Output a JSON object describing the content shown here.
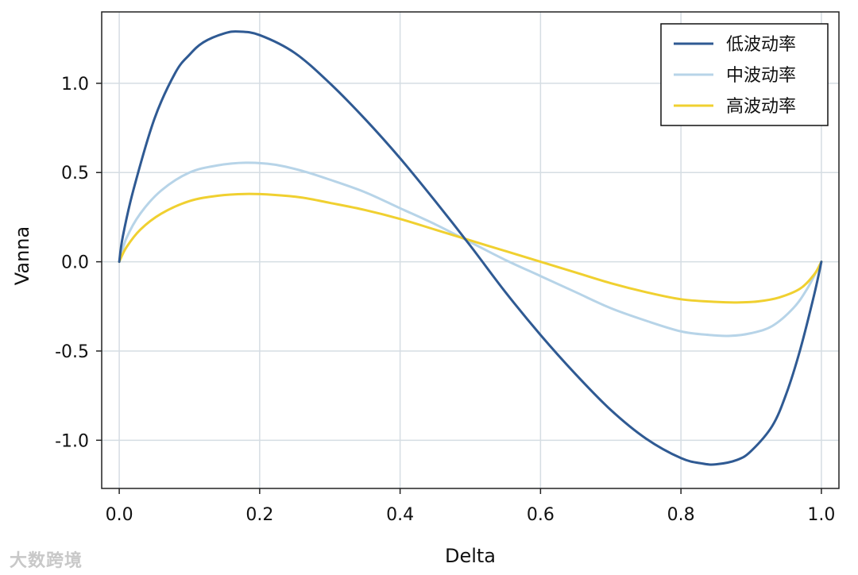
{
  "chart_data": {
    "type": "line",
    "xlabel": "Delta",
    "ylabel": "Vanna",
    "xlim": [
      -0.025,
      1.025
    ],
    "ylim": [
      -1.27,
      1.4
    ],
    "xticks": [
      0.0,
      0.2,
      0.4,
      0.6,
      0.8,
      1.0
    ],
    "xtick_labels": [
      "0.0",
      "0.2",
      "0.4",
      "0.6",
      "0.8",
      "1.0"
    ],
    "yticks": [
      -1.0,
      -0.5,
      0.0,
      0.5,
      1.0
    ],
    "ytick_labels": [
      "-1.0",
      "-0.5",
      "0.0",
      "0.5",
      "1.0"
    ],
    "grid": true,
    "legend_position": "top-right",
    "series": [
      {
        "name": "低波动率",
        "color": "#2f5a93",
        "x": [
          0.0,
          0.005,
          0.02,
          0.05,
          0.08,
          0.1,
          0.12,
          0.15,
          0.17,
          0.2,
          0.25,
          0.3,
          0.35,
          0.4,
          0.45,
          0.5,
          0.55,
          0.6,
          0.65,
          0.7,
          0.75,
          0.8,
          0.83,
          0.85,
          0.88,
          0.9,
          0.93,
          0.95,
          0.97,
          0.99,
          1.0
        ],
        "y": [
          0.0,
          0.14,
          0.4,
          0.8,
          1.06,
          1.16,
          1.23,
          1.28,
          1.29,
          1.27,
          1.17,
          1.0,
          0.8,
          0.58,
          0.34,
          0.09,
          -0.17,
          -0.41,
          -0.63,
          -0.83,
          -0.99,
          -1.1,
          -1.13,
          -1.135,
          -1.11,
          -1.06,
          -0.92,
          -0.74,
          -0.49,
          -0.18,
          0.0
        ]
      },
      {
        "name": "中波动率",
        "color": "#b7d4e8",
        "x": [
          0.0,
          0.01,
          0.03,
          0.06,
          0.1,
          0.14,
          0.18,
          0.22,
          0.26,
          0.3,
          0.35,
          0.4,
          0.45,
          0.5,
          0.55,
          0.6,
          0.65,
          0.7,
          0.75,
          0.8,
          0.84,
          0.87,
          0.9,
          0.93,
          0.96,
          0.98,
          1.0
        ],
        "y": [
          0.0,
          0.13,
          0.27,
          0.4,
          0.5,
          0.54,
          0.555,
          0.545,
          0.51,
          0.46,
          0.39,
          0.3,
          0.21,
          0.11,
          0.01,
          -0.08,
          -0.17,
          -0.26,
          -0.33,
          -0.39,
          -0.41,
          -0.415,
          -0.4,
          -0.36,
          -0.26,
          -0.15,
          0.0
        ]
      },
      {
        "name": "高波动率",
        "color": "#f0d030",
        "x": [
          0.0,
          0.01,
          0.03,
          0.06,
          0.1,
          0.14,
          0.18,
          0.22,
          0.26,
          0.3,
          0.35,
          0.4,
          0.45,
          0.5,
          0.55,
          0.6,
          0.65,
          0.7,
          0.75,
          0.8,
          0.85,
          0.88,
          0.91,
          0.94,
          0.97,
          0.99,
          1.0
        ],
        "y": [
          0.0,
          0.08,
          0.18,
          0.27,
          0.34,
          0.37,
          0.38,
          0.375,
          0.36,
          0.33,
          0.29,
          0.24,
          0.18,
          0.12,
          0.06,
          0.0,
          -0.06,
          -0.12,
          -0.17,
          -0.21,
          -0.225,
          -0.228,
          -0.222,
          -0.2,
          -0.15,
          -0.07,
          0.0
        ]
      }
    ]
  },
  "watermark": "大数跨境"
}
